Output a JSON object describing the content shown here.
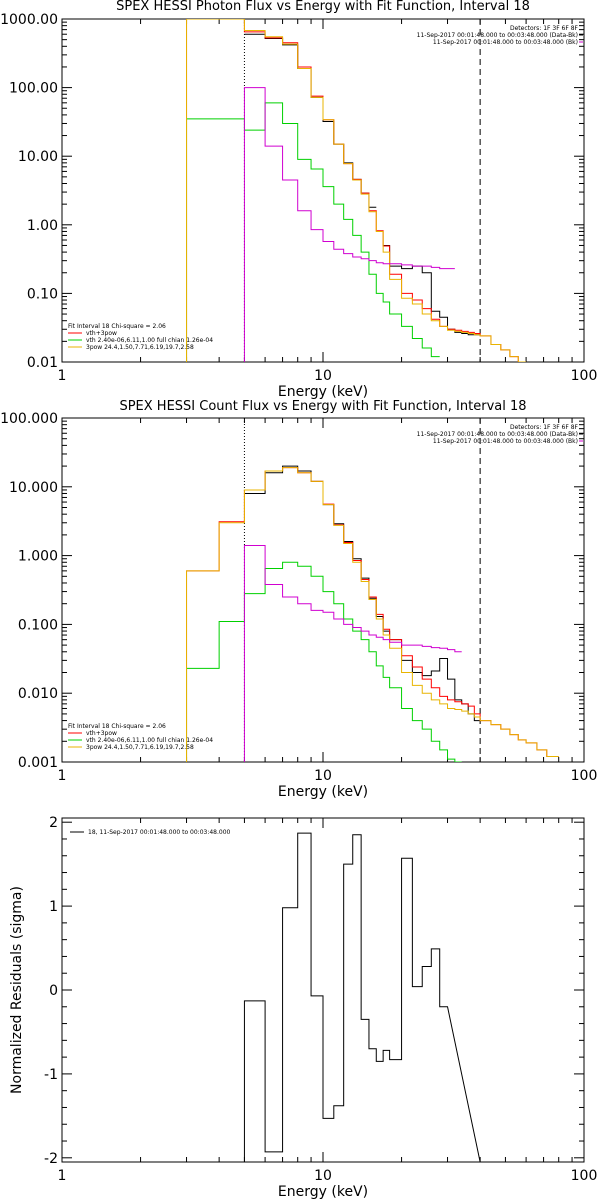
{
  "figure": {
    "colors": {
      "data": "#000000",
      "thermal": "#00d000",
      "power": "#e8b400",
      "total": "#ff0000",
      "background": "#d000d0",
      "axes": "#000000"
    }
  },
  "chart_data": [
    {
      "type": "line",
      "title": "SPEX HESSI Photon Flux vs Energy with Fit Function, Interval 18",
      "xlabel": "Energy (keV)",
      "ylabel": "",
      "xscale": "log",
      "yscale": "log",
      "xlim": [
        1,
        100
      ],
      "ylim": [
        0.01,
        1000
      ],
      "xticks": [
        "1",
        "10",
        "100"
      ],
      "yticks": [
        "0.01",
        "0.10",
        "1.00",
        "10.00",
        "100.00",
        "1000.00"
      ],
      "vlines": [
        {
          "x": 5,
          "style": "dotted"
        },
        {
          "x": 40,
          "style": "dashed"
        }
      ],
      "legend_tr": [
        "Detectors: 1F 3F 6F 8F",
        "11-Sep-2017 00:01:48.000 to 00:03:48.000 (Data-Bk)",
        "11-Sep-2017 00:01:48.000 to 00:03:48.000 (Bk)"
      ],
      "legend_bl": [
        "Fit Interval 18   Chi-square = 2.06",
        "vth+3pow",
        "vth 2.40e-06,6.11,1.00  full chian 1.26e-04",
        "3pow 24.4,1.50,7.71,6.19,19.7,2.58"
      ],
      "edges": [
        3,
        5,
        6,
        7,
        8,
        9,
        10,
        11,
        12,
        13,
        14,
        15,
        16,
        17,
        18,
        20,
        22,
        24,
        26,
        28,
        30,
        32,
        34,
        36,
        38,
        40,
        44,
        48,
        52,
        56,
        60
      ],
      "series": [
        {
          "name": "data",
          "color": "#000000",
          "values": [
            null,
            600,
            520,
            420,
            190,
            72,
            32,
            15,
            8,
            4.6,
            2.9,
            1.8,
            null,
            0.5,
            0.25,
            0.23,
            0.25,
            0.2,
            0.055,
            0.045,
            0.03,
            0.027,
            0.026,
            0.025,
            0.025
          ]
        },
        {
          "name": "vth+3pow",
          "color": "#ff0000",
          "values": [
            1000,
            650,
            530,
            450,
            200,
            75,
            34,
            15,
            7.8,
            4.6,
            2.9,
            1.6,
            0.82,
            0.49,
            0.19,
            0.1,
            0.08,
            0.06,
            0.042,
            0.033,
            0.03,
            0.029,
            0.028,
            0.027,
            0.026,
            0.024,
            0.018,
            0.015,
            0.012,
            0.01
          ]
        },
        {
          "name": "vth",
          "color": "#00d000",
          "values": [
            35,
            24,
            60,
            30,
            9,
            6.5,
            3.6,
            2,
            1.2,
            0.7,
            0.4,
            0.19,
            0.1,
            0.075,
            0.05,
            0.033,
            0.022,
            0.016,
            0.012
          ]
        },
        {
          "name": "3pow",
          "color": "#e8b400",
          "values": [
            1000,
            680,
            550,
            430,
            190,
            72,
            34,
            15,
            7.8,
            4.5,
            2.8,
            1.55,
            0.8,
            0.4,
            0.16,
            0.085,
            0.07,
            0.05,
            0.04,
            0.033,
            0.029,
            0.028,
            0.027,
            0.026,
            0.025,
            0.024,
            0.018,
            0.015,
            0.012,
            0.01
          ]
        },
        {
          "name": "background",
          "color": "#d000d0",
          "start": 5,
          "values": [
            100,
            14,
            4.5,
            1.6,
            0.85,
            0.57,
            0.44,
            0.38,
            0.34,
            0.32,
            0.3,
            0.28,
            0.27,
            0.27,
            0.26,
            0.25,
            0.25,
            0.24,
            0.23,
            0.23
          ]
        }
      ]
    },
    {
      "type": "line",
      "title": "SPEX HESSI Count Flux vs Energy with Fit Function, Interval 18",
      "xlabel": "Energy (keV)",
      "ylabel": "",
      "xscale": "log",
      "yscale": "log",
      "xlim": [
        1,
        100
      ],
      "ylim": [
        0.001,
        100
      ],
      "xticks": [
        "1",
        "10",
        "100"
      ],
      "yticks": [
        "0.001",
        "0.010",
        "0.100",
        "1.000",
        "10.000",
        "100.000"
      ],
      "vlines": [
        {
          "x": 5,
          "style": "dotted"
        },
        {
          "x": 40,
          "style": "dashed"
        }
      ],
      "legend_tr": [
        "Detectors: 1F 3F 6F 8F",
        "11-Sep-2017 00:01:48.000 to 00:03:48.000 (Data-Bk)",
        "11-Sep-2017 00:01:48.000 to 00:03:48.000 (Bk)"
      ],
      "legend_bl": [
        "Fit Interval 18   Chi-square = 2.06",
        "vth+3pow",
        "vth 2.40e-06,6.11,1.00  full chian 1.26e-04",
        "3pow 24.4,1.50,7.71,6.19,19.7,2.58"
      ],
      "edges": [
        3,
        4,
        5,
        6,
        7,
        8,
        9,
        10,
        11,
        12,
        13,
        14,
        15,
        16,
        17,
        18,
        20,
        22,
        24,
        26,
        28,
        30,
        32,
        34,
        36,
        38,
        40,
        44,
        48,
        52,
        56,
        60,
        66,
        72,
        80
      ],
      "series": [
        {
          "name": "data",
          "color": "#000000",
          "values": [
            null,
            null,
            8,
            16,
            20,
            17,
            12,
            5.5,
            2.9,
            1.6,
            0.9,
            0.47,
            0.24,
            0.13,
            0.08,
            0.06,
            0.03,
            0.02,
            0.018,
            0.021,
            0.032,
            0.016,
            0.008,
            0.007,
            0.005,
            0.004
          ]
        },
        {
          "name": "vth+3pow",
          "color": "#ff0000",
          "values": [
            0.6,
            3.1,
            9,
            17,
            19,
            16,
            12,
            5.6,
            2.8,
            1.55,
            0.85,
            0.45,
            0.25,
            0.14,
            0.085,
            0.06,
            0.035,
            0.024,
            0.016,
            0.012,
            0.009,
            0.008,
            0.0075,
            0.007,
            0.0065,
            0.005,
            0.004,
            0.0035,
            0.003,
            0.0025,
            0.0021,
            0.0019,
            0.0015,
            0.0012,
            0.001
          ]
        },
        {
          "name": "vth",
          "color": "#00d000",
          "values": [
            0.023,
            0.11,
            0.28,
            0.65,
            0.8,
            0.7,
            0.5,
            0.3,
            0.2,
            0.12,
            0.08,
            0.06,
            0.04,
            0.025,
            0.017,
            0.012,
            0.006,
            0.004,
            0.003,
            0.002,
            0.0015,
            0.0011,
            0.001
          ]
        },
        {
          "name": "3pow",
          "color": "#e8b400",
          "values": [
            0.6,
            3,
            9,
            17,
            19,
            16,
            12,
            5.5,
            2.75,
            1.5,
            0.8,
            0.42,
            0.23,
            0.12,
            0.07,
            0.045,
            0.02,
            0.013,
            0.01,
            0.008,
            0.007,
            0.006,
            0.0058,
            0.0055,
            0.005,
            0.0045,
            0.004,
            0.0035,
            0.003,
            0.0025,
            0.0021,
            0.0019,
            0.0015,
            0.0012,
            0.001
          ]
        },
        {
          "name": "background",
          "color": "#d000d0",
          "start": 5,
          "values": [
            1.4,
            0.38,
            0.25,
            0.2,
            0.16,
            0.15,
            0.12,
            0.1,
            0.09,
            0.08,
            0.07,
            0.065,
            0.06,
            0.055,
            0.05,
            0.05,
            0.048,
            0.046,
            0.045,
            0.043,
            0.04
          ]
        }
      ]
    },
    {
      "type": "line",
      "title": "",
      "xlabel": "Energy (keV)",
      "ylabel": "Normalized Residuals (sigma)",
      "xscale": "log",
      "yscale": "linear",
      "xlim": [
        1,
        100
      ],
      "ylim": [
        -2.05,
        2.05
      ],
      "xticks": [
        "1",
        "10",
        "100"
      ],
      "yticks": [
        "-2",
        "-1",
        "0",
        "1",
        "2"
      ],
      "legend_tl": [
        "18, 11-Sep-2017 00:01:48.000 to 00:03:48.000"
      ],
      "edges": [
        5,
        6,
        7,
        8,
        9,
        10,
        11,
        12,
        13,
        14,
        15,
        16,
        17,
        18,
        20,
        22,
        24,
        26,
        28,
        30,
        32,
        34,
        36,
        38,
        40
      ],
      "series": [
        {
          "name": "",
          "color": "#000000",
          "values": [
            -0.13,
            -1.93,
            0.98,
            1.87,
            -0.07,
            -1.53,
            -1.38,
            1.5,
            1.85,
            -0.35,
            -0.7,
            -0.85,
            -0.72,
            -0.83,
            1.57,
            0.04,
            0.28,
            0.49,
            -0.2
          ]
        }
      ]
    }
  ]
}
